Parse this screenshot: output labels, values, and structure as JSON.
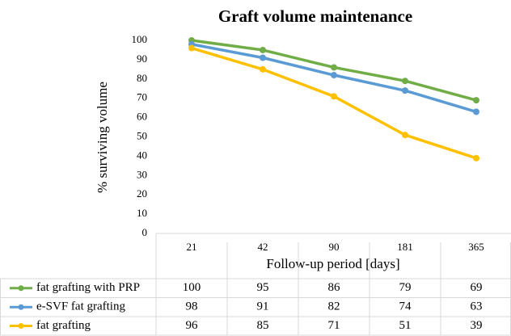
{
  "chart_data": {
    "type": "line",
    "title": "Graft volume maintenance",
    "y_label": "% surviving volume",
    "x_label": "Follow-up period [days]",
    "categories": [
      "21",
      "42",
      "90",
      "181",
      "365"
    ],
    "series": [
      {
        "name": "fat grafting with PRP",
        "color": "#70ad47",
        "values": [
          100,
          95,
          86,
          79,
          69
        ]
      },
      {
        "name": "e-SVF fat grafting",
        "color": "#5b9bd5",
        "values": [
          98,
          91,
          82,
          74,
          63
        ]
      },
      {
        "name": "fat grafting",
        "color": "#ffc000",
        "values": [
          96,
          85,
          71,
          51,
          39
        ]
      }
    ],
    "ylim": [
      0,
      100
    ],
    "yticks": [
      0,
      10,
      20,
      30,
      40,
      50,
      60,
      70,
      80,
      90,
      100
    ],
    "grid": false
  }
}
